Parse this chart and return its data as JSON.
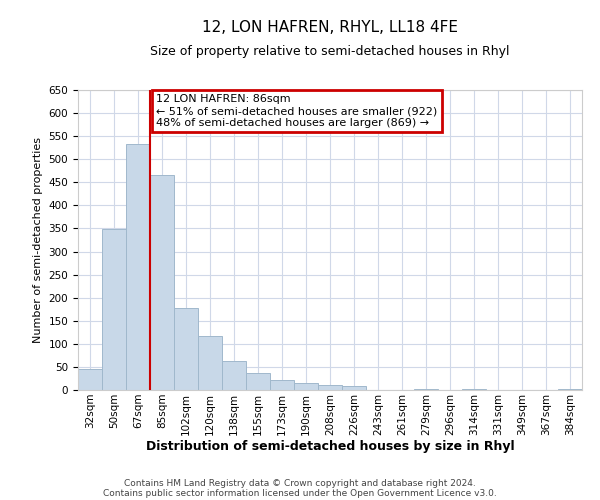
{
  "title": "12, LON HAFREN, RHYL, LL18 4FE",
  "subtitle": "Size of property relative to semi-detached houses in Rhyl",
  "xlabel": "Distribution of semi-detached houses by size in Rhyl",
  "ylabel": "Number of semi-detached properties",
  "footnote1": "Contains HM Land Registry data © Crown copyright and database right 2024.",
  "footnote2": "Contains public sector information licensed under the Open Government Licence v3.0.",
  "bin_labels": [
    "32sqm",
    "50sqm",
    "67sqm",
    "85sqm",
    "102sqm",
    "120sqm",
    "138sqm",
    "155sqm",
    "173sqm",
    "190sqm",
    "208sqm",
    "226sqm",
    "243sqm",
    "261sqm",
    "279sqm",
    "296sqm",
    "314sqm",
    "331sqm",
    "349sqm",
    "367sqm",
    "384sqm"
  ],
  "bar_values": [
    46,
    348,
    534,
    466,
    178,
    118,
    62,
    36,
    22,
    15,
    10,
    8,
    0,
    0,
    3,
    0,
    2,
    0,
    0,
    0,
    2
  ],
  "bar_color": "#c8d8e8",
  "bar_edge_color": "#a0b8cc",
  "marker_bin_index": 3,
  "marker_line_color": "#cc0000",
  "annotation_title": "12 LON HAFREN: 86sqm",
  "annotation_line1": "← 51% of semi-detached houses are smaller (922)",
  "annotation_line2": "48% of semi-detached houses are larger (869) →",
  "annotation_box_color": "#cc0000",
  "ylim": [
    0,
    650
  ],
  "yticks": [
    0,
    50,
    100,
    150,
    200,
    250,
    300,
    350,
    400,
    450,
    500,
    550,
    600,
    650
  ],
  "background_color": "#ffffff",
  "grid_color": "#d0d8e8",
  "title_fontsize": 11,
  "subtitle_fontsize": 9,
  "ylabel_fontsize": 8,
  "xlabel_fontsize": 9,
  "tick_fontsize": 7.5,
  "annot_fontsize": 8,
  "footnote_fontsize": 6.5
}
